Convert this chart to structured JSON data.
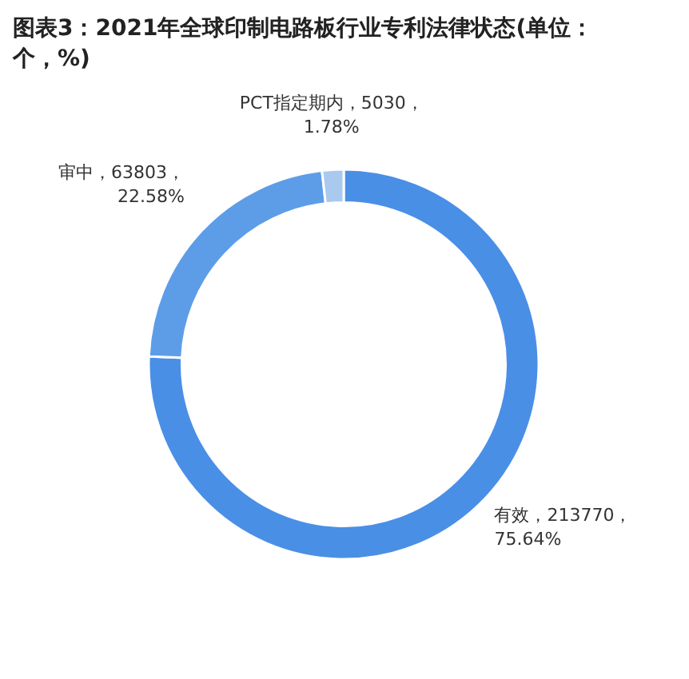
{
  "chart_data": {
    "type": "donut",
    "title": "图表3：2021年全球印制电路板行业专利法律状态(单位：个，%)",
    "categories": [
      "有效",
      "审中",
      "PCT指定期内"
    ],
    "values": [
      213770,
      63803,
      5030
    ],
    "value_labels": [
      "213770，75.64%",
      "63803，22.58%",
      "5030，1.78%"
    ],
    "colors": [
      "#4a8fe6",
      "#5d9de8",
      "#a9c9ef"
    ]
  }
}
